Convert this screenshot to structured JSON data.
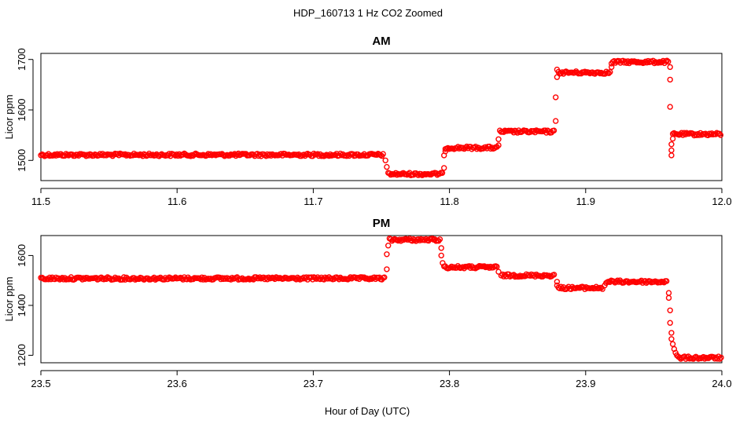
{
  "figure": {
    "title": "HDP_160713  1 Hz CO2 Zoomed",
    "xlabel": "Hour of Day (UTC)"
  },
  "colors": {
    "points": "#ff0000",
    "axes": "#000000"
  },
  "chart_data": [
    {
      "type": "scatter",
      "title": "AM",
      "xlabel": "",
      "ylabel": "Licor ppm",
      "xlim": [
        11.5,
        12.0
      ],
      "ylim": [
        1460,
        1712
      ],
      "xticks": [
        11.5,
        11.6,
        11.7,
        11.8,
        11.9,
        12.0
      ],
      "xtick_labels": [
        "11.5",
        "11.6",
        "11.7",
        "11.8",
        "11.9",
        "12.0"
      ],
      "yticks": [
        1500,
        1600,
        1700
      ],
      "ytick_labels": [
        "1500",
        "1600",
        "1700"
      ],
      "marker": "open-circle",
      "segments": [
        {
          "x_start": 11.5,
          "x_end": 11.752,
          "y": 1511
        },
        {
          "x_start": 11.755,
          "x_end": 11.795,
          "y": 1473
        },
        {
          "x_start": 11.797,
          "x_end": 11.835,
          "y": 1525
        },
        {
          "x_start": 11.837,
          "x_end": 11.877,
          "y": 1557
        },
        {
          "x_start": 11.88,
          "x_end": 11.918,
          "y": 1674
        },
        {
          "x_start": 11.92,
          "x_end": 11.961,
          "y": 1695
        },
        {
          "x_start": 11.964,
          "x_end": 12.0,
          "y": 1552
        }
      ],
      "transition_points": [
        [
          11.753,
          1500
        ],
        [
          11.754,
          1487
        ],
        [
          11.796,
          1485
        ],
        [
          11.796,
          1510
        ],
        [
          11.797,
          1518
        ],
        [
          11.836,
          1530
        ],
        [
          11.836,
          1542
        ],
        [
          11.878,
          1578
        ],
        [
          11.878,
          1625
        ],
        [
          11.879,
          1665
        ],
        [
          11.879,
          1680
        ],
        [
          11.919,
          1685
        ],
        [
          11.919,
          1692
        ],
        [
          11.962,
          1685
        ],
        [
          11.962,
          1660
        ],
        [
          11.962,
          1606
        ],
        [
          11.963,
          1510
        ],
        [
          11.963,
          1520
        ],
        [
          11.963,
          1532
        ],
        [
          11.964,
          1543
        ]
      ]
    },
    {
      "type": "scatter",
      "title": "PM",
      "xlabel": "",
      "ylabel": "Licor ppm",
      "xlim": [
        23.5,
        24.0
      ],
      "ylim": [
        1170,
        1680
      ],
      "xticks": [
        23.5,
        23.6,
        23.7,
        23.8,
        23.9,
        24.0
      ],
      "xtick_labels": [
        "23.5",
        "23.6",
        "23.7",
        "23.8",
        "23.9",
        "24.0"
      ],
      "yticks": [
        1200,
        1400,
        1600
      ],
      "ytick_labels": [
        "1200",
        "1400",
        "1600"
      ],
      "marker": "open-circle",
      "segments": [
        {
          "x_start": 23.5,
          "x_end": 23.753,
          "y": 1508
        },
        {
          "x_start": 23.756,
          "x_end": 23.793,
          "y": 1663
        },
        {
          "x_start": 23.796,
          "x_end": 23.835,
          "y": 1553
        },
        {
          "x_start": 23.838,
          "x_end": 23.877,
          "y": 1520
        },
        {
          "x_start": 23.88,
          "x_end": 23.913,
          "y": 1470
        },
        {
          "x_start": 23.916,
          "x_end": 23.96,
          "y": 1495
        },
        {
          "x_start": 23.968,
          "x_end": 24.0,
          "y": 1190
        }
      ],
      "transition_points": [
        [
          23.754,
          1545
        ],
        [
          23.754,
          1605
        ],
        [
          23.755,
          1640
        ],
        [
          23.794,
          1630
        ],
        [
          23.794,
          1600
        ],
        [
          23.795,
          1570
        ],
        [
          23.836,
          1535
        ],
        [
          23.879,
          1495
        ],
        [
          23.879,
          1480
        ],
        [
          23.914,
          1480
        ],
        [
          23.915,
          1490
        ],
        [
          23.961,
          1450
        ],
        [
          23.961,
          1430
        ],
        [
          23.962,
          1380
        ],
        [
          23.962,
          1330
        ],
        [
          23.963,
          1290
        ],
        [
          23.963,
          1265
        ],
        [
          23.964,
          1245
        ],
        [
          23.965,
          1225
        ],
        [
          23.966,
          1210
        ],
        [
          23.967,
          1200
        ]
      ]
    }
  ]
}
